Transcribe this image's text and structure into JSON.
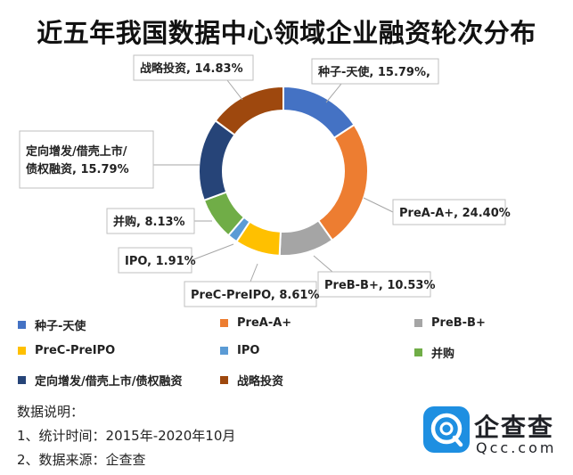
{
  "chart_data": {
    "type": "pie",
    "donut": true,
    "title": "近五年我国数据中心领域企业融资轮次分布",
    "unit": "%",
    "slices": [
      {
        "name": "种子-天使",
        "value": 15.79,
        "label": "种子-天使, 15.79%,",
        "color": "#4472C4"
      },
      {
        "name": "PreA-A+",
        "value": 24.4,
        "label": "PreA-A+, 24.40%",
        "color": "#ED7D31"
      },
      {
        "name": "PreB-B+",
        "value": 10.53,
        "label": "PreB-B+, 10.53%",
        "color": "#A5A5A5"
      },
      {
        "name": "PreC-PreIPO",
        "value": 8.61,
        "label": "PreC-PreIPO, 8.61%",
        "color": "#FFC000"
      },
      {
        "name": "IPO",
        "value": 1.91,
        "label": "IPO, 1.91%",
        "color": "#5B9BD5"
      },
      {
        "name": "并购",
        "value": 8.13,
        "label": "并购, 8.13%",
        "color": "#70AD47"
      },
      {
        "name": "定向增发/借壳上市/债权融资",
        "value": 15.79,
        "label_lines": [
          "定向增发/借壳上市/",
          "债权融资, 15.79%"
        ],
        "color": "#264478"
      },
      {
        "name": "战略投资",
        "value": 14.83,
        "label": "战略投资, 14.83%",
        "color": "#9E480E"
      }
    ],
    "legend_position": "bottom"
  },
  "notes": {
    "heading": "数据说明：",
    "lines": [
      "1、统计时间：2015年-2020年10月",
      "2、数据来源：企查查"
    ]
  },
  "brand": {
    "name": "企查查",
    "url": "Qcc.com",
    "color": "#1E8FE1"
  }
}
